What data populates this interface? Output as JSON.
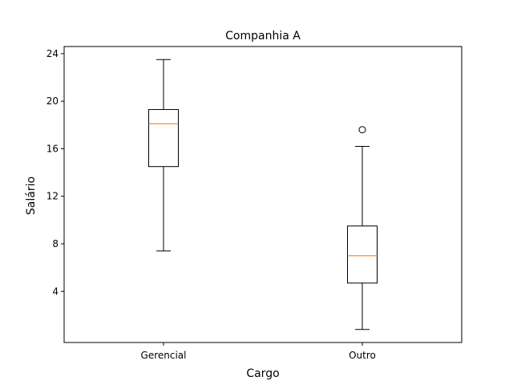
{
  "chart_data": {
    "type": "box",
    "title": "Companhia A",
    "xlabel": "Cargo",
    "ylabel": "Salário",
    "categories": [
      "Gerencial",
      "Outro"
    ],
    "boxes": [
      {
        "category": "Gerencial",
        "whisker_low": 7.4,
        "q1": 14.5,
        "median": 18.1,
        "q3": 19.3,
        "whisker_high": 23.5,
        "outliers": []
      },
      {
        "category": "Outro",
        "whisker_low": 0.8,
        "q1": 4.7,
        "median": 7.0,
        "q3": 9.5,
        "whisker_high": 16.2,
        "outliers": [
          17.6
        ]
      }
    ],
    "yticks": [
      4,
      8,
      12,
      16,
      20,
      24
    ],
    "ylim": [
      -0.3,
      24.6
    ],
    "grid": false,
    "colors": {
      "box": "#000000",
      "median": "#ff7f0e",
      "background": "#ffffff"
    }
  }
}
